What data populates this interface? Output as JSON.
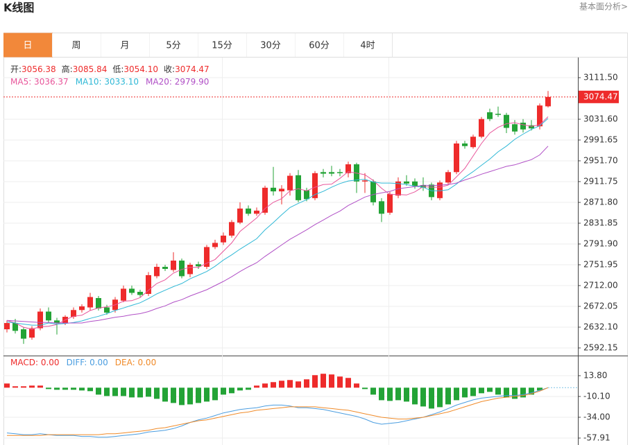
{
  "title": "K线图",
  "link": "基本面分析>",
  "tabs": [
    "日",
    "周",
    "月",
    "5分",
    "15分",
    "30分",
    "60分",
    "4时"
  ],
  "active_tab": 0,
  "header": [
    {
      "label": "开:",
      "value": "3056.38"
    },
    {
      "label": "高:",
      "value": "3085.84"
    },
    {
      "label": "低:",
      "value": "3054.10"
    },
    {
      "label": "收:",
      "value": "3074.47"
    }
  ],
  "chart_data": [
    {
      "type": "candlestick",
      "open": [
        2628,
        2640,
        2628,
        2612,
        2630,
        2662,
        2645,
        2640,
        2652,
        2665,
        2670,
        2688,
        2670,
        2665,
        2683,
        2706,
        2700,
        2696,
        2730,
        2748,
        2742,
        2760,
        2734,
        2753,
        2748,
        2786,
        2795,
        2808,
        2833,
        2860,
        2850,
        2852,
        2900,
        2893,
        2895,
        2924,
        2895,
        2880,
        2930,
        2930,
        2930,
        2928,
        2945,
        2912,
        2912,
        2874,
        2852,
        2885,
        2912,
        2912,
        2905,
        2906,
        2880,
        2910,
        2930,
        2985,
        2978,
        2998,
        3045,
        3042,
        3040,
        3022,
        3025,
        3020,
        3018,
        3056.38
      ],
      "high": [
        2645,
        2648,
        2632,
        2634,
        2668,
        2670,
        2650,
        2655,
        2670,
        2676,
        2698,
        2692,
        2675,
        2690,
        2712,
        2712,
        2704,
        2738,
        2754,
        2752,
        2776,
        2764,
        2756,
        2758,
        2790,
        2800,
        2814,
        2838,
        2872,
        2866,
        2862,
        2904,
        2940,
        2905,
        2928,
        2934,
        2900,
        2932,
        2936,
        2942,
        2936,
        2950,
        2948,
        2928,
        2916,
        2880,
        2892,
        2920,
        2924,
        2918,
        2920,
        2910,
        2914,
        2934,
        2990,
        2990,
        3002,
        3036,
        3052,
        3056,
        3044,
        3030,
        3032,
        3030,
        3062,
        3085.84
      ],
      "low": [
        2622,
        2620,
        2600,
        2608,
        2626,
        2640,
        2618,
        2636,
        2648,
        2660,
        2664,
        2664,
        2656,
        2660,
        2680,
        2694,
        2690,
        2692,
        2726,
        2740,
        2738,
        2726,
        2728,
        2744,
        2744,
        2782,
        2790,
        2804,
        2830,
        2846,
        2846,
        2848,
        2885,
        2868,
        2885,
        2872,
        2874,
        2876,
        2920,
        2922,
        2922,
        2920,
        2890,
        2890,
        2866,
        2834,
        2848,
        2880,
        2904,
        2898,
        2894,
        2876,
        2876,
        2905,
        2926,
        2975,
        2975,
        2995,
        3028,
        3036,
        3005,
        3002,
        3006,
        3010,
        3012,
        3054.1
      ],
      "close": [
        2640,
        2625,
        2610,
        2630,
        2662,
        2645,
        2640,
        2652,
        2665,
        2672,
        2690,
        2668,
        2660,
        2685,
        2706,
        2698,
        2694,
        2732,
        2748,
        2744,
        2760,
        2730,
        2752,
        2749,
        2786,
        2794,
        2808,
        2834,
        2860,
        2850,
        2856,
        2900,
        2893,
        2898,
        2923,
        2876,
        2878,
        2928,
        2927,
        2927,
        2928,
        2945,
        2912,
        2914,
        2872,
        2850,
        2888,
        2912,
        2908,
        2903,
        2900,
        2882,
        2910,
        2930,
        2985,
        2980,
        2998,
        3032,
        3032,
        3040,
        3015,
        3008,
        3012,
        3014,
        3058,
        3074.47
      ],
      "up_color": "#ee2b2b",
      "down_color": "#23a336",
      "series": [
        {
          "name": "MA5",
          "last": ": 3036.37",
          "color": "#e8559a",
          "values": [
            2645,
            2640,
            2632,
            2628,
            2633,
            2634,
            2637,
            2646,
            2653,
            2655,
            2664,
            2669,
            2671,
            2675,
            2682,
            2683,
            2689,
            2703,
            2716,
            2723,
            2736,
            2743,
            2747,
            2747,
            2755,
            2762,
            2778,
            2794,
            2816,
            2829,
            2842,
            2860,
            2872,
            2879,
            2894,
            2898,
            2894,
            2901,
            2906,
            2907,
            2918,
            2931,
            2928,
            2925,
            2914,
            2899,
            2887,
            2887,
            2886,
            2892,
            2902,
            2901,
            2901,
            2905,
            2921,
            2937,
            2961,
            2985,
            3005,
            3016,
            3023,
            3025,
            3021,
            3018,
            3021,
            3036.37
          ]
        },
        {
          "name": "MA10",
          "last": ": 3033.10",
          "color": "#2fb8d6",
          "values": [
            2642,
            2640,
            2638,
            2636,
            2636,
            2640,
            2638,
            2639,
            2641,
            2644,
            2649,
            2653,
            2658,
            2664,
            2669,
            2674,
            2679,
            2687,
            2696,
            2703,
            2710,
            2716,
            2725,
            2732,
            2739,
            2749,
            2761,
            2771,
            2782,
            2792,
            2802,
            2819,
            2833,
            2848,
            2862,
            2870,
            2877,
            2887,
            2893,
            2901,
            2908,
            2913,
            2915,
            2916,
            2911,
            2909,
            2909,
            2908,
            2906,
            2903,
            2901,
            2894,
            2894,
            2896,
            2907,
            2920,
            2931,
            2943,
            2955,
            2969,
            2980,
            2993,
            3003,
            3012,
            3019,
            3033.1
          ]
        },
        {
          "name": "MA20",
          "last": ": 2979.90",
          "color": "#b04fc6",
          "values": [
            2645,
            2644,
            2643,
            2642,
            2641,
            2641,
            2640,
            2640,
            2640,
            2640,
            2643,
            2645,
            2648,
            2651,
            2653,
            2656,
            2658,
            2662,
            2668,
            2673,
            2680,
            2685,
            2692,
            2698,
            2704,
            2712,
            2720,
            2729,
            2739,
            2748,
            2756,
            2768,
            2779,
            2790,
            2801,
            2810,
            2819,
            2829,
            2838,
            2847,
            2855,
            2866,
            2874,
            2882,
            2887,
            2890,
            2893,
            2898,
            2900,
            2902,
            2905,
            2904,
            2905,
            2906,
            2909,
            2915,
            2920,
            2926,
            2931,
            2936,
            2941,
            2944,
            2949,
            2954,
            2963,
            2979.9
          ]
        }
      ],
      "ylim": [
        2578.8,
        3143.5
      ],
      "yticks": [
        {
          "value": 3111.5,
          "label": "3111.50"
        },
        {
          "value": 3031.6,
          "label": "3031.60"
        },
        {
          "value": 2991.65,
          "label": "2991.65"
        },
        {
          "value": 2951.7,
          "label": "2951.70"
        },
        {
          "value": 2911.75,
          "label": "2911.75"
        },
        {
          "value": 2871.8,
          "label": "2871.80"
        },
        {
          "value": 2831.85,
          "label": "2831.85"
        },
        {
          "value": 2791.9,
          "label": "2791.90"
        },
        {
          "value": 2751.95,
          "label": "2751.95"
        },
        {
          "value": 2712,
          "label": "2712.00"
        },
        {
          "value": 2672.05,
          "label": "2672.05"
        },
        {
          "value": 2632.1,
          "label": "2632.10"
        },
        {
          "value": 2592.15,
          "label": "2592.15"
        }
      ],
      "last_price_label": "3074.47",
      "grid": true
    },
    {
      "type": "macd",
      "series": [
        {
          "name": "MACD",
          "last": ": 0.00",
          "color": "#ee2b2b",
          "down_color": "#23a336",
          "values": [
            4.8,
            1.6,
            1.6,
            2.4,
            2.4,
            -1.6,
            -2.4,
            -2.4,
            -2.4,
            -3.2,
            -4,
            -8,
            -9.6,
            -9.6,
            -9.6,
            -11.2,
            -11.2,
            -10.4,
            -12.8,
            -16,
            -17.6,
            -20,
            -19.2,
            -17.6,
            -16,
            -14.4,
            -8,
            -6.4,
            -3.2,
            -2.4,
            2.4,
            4.8,
            6.4,
            8,
            8.8,
            7.2,
            9.6,
            14.4,
            16,
            15.2,
            12.8,
            11.2,
            4.8,
            -1.6,
            -8,
            -14.4,
            -15.2,
            -14.4,
            -16,
            -19.2,
            -21.6,
            -24,
            -22.4,
            -19.2,
            -14.4,
            -11.2,
            -9.6,
            -6.4,
            -4.8,
            -8,
            -11.2,
            -12.8,
            -11.2,
            -8,
            -3.2,
            0
          ]
        },
        {
          "name": "DIFF",
          "last": ": 0.00",
          "color": "#4a9de0",
          "values": [
            -52,
            -53,
            -54,
            -54,
            -53,
            -54,
            -55,
            -55,
            -55,
            -56,
            -56,
            -57,
            -57,
            -56,
            -55,
            -54,
            -53,
            -51,
            -50,
            -49,
            -47,
            -44,
            -40,
            -37,
            -35,
            -32,
            -29,
            -27,
            -25,
            -24,
            -23,
            -21,
            -20,
            -20,
            -21,
            -23,
            -23,
            -24,
            -25,
            -27,
            -29,
            -31,
            -33,
            -36,
            -40,
            -42,
            -41,
            -40,
            -38,
            -36,
            -34,
            -31,
            -28,
            -24,
            -20,
            -17,
            -14,
            -12,
            -11,
            -10,
            -9,
            -9,
            -8,
            -6,
            -3,
            0
          ]
        },
        {
          "name": "DEA",
          "last": ": 0.00",
          "color": "#f08a28",
          "values": [
            -55,
            -55,
            -55,
            -55,
            -55,
            -54,
            -54,
            -54,
            -54,
            -54,
            -54,
            -54,
            -53,
            -53,
            -52,
            -51,
            -50,
            -49,
            -47,
            -46,
            -44,
            -42,
            -40,
            -38,
            -37,
            -35,
            -33,
            -31,
            -29,
            -28,
            -26,
            -25,
            -24,
            -23,
            -22,
            -22,
            -22,
            -22,
            -23,
            -24,
            -25,
            -26,
            -28,
            -30,
            -32,
            -34,
            -35,
            -36,
            -36,
            -35,
            -34,
            -32,
            -30,
            -28,
            -25,
            -22,
            -19,
            -16,
            -14,
            -12,
            -11,
            -10,
            -9,
            -7,
            -4,
            0
          ]
        }
      ],
      "ylim": [
        -64.3,
        36.1
      ],
      "yticks": [
        {
          "value": 13.8,
          "label": "13.80"
        },
        {
          "value": -10.1,
          "label": "-10.10"
        },
        {
          "value": -34,
          "label": "-34.00"
        },
        {
          "value": -57.91,
          "label": "-57.91"
        }
      ],
      "grid": true
    }
  ]
}
